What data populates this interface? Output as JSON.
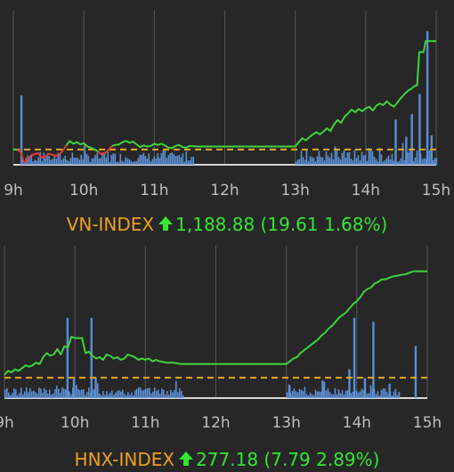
{
  "colors": {
    "background": "#272727",
    "grid": "#555555",
    "axis": "#d8d8d8",
    "up_line": "#3ed33e",
    "down_line": "#e53935",
    "reference": "#e5a823",
    "volume": "#5b8fd6",
    "index_name": "#f0a01e",
    "change_up": "#33e733"
  },
  "chart_data": [
    {
      "type": "line",
      "name": "VN-INDEX",
      "x_ticks": [
        "9h",
        "10h",
        "11h",
        "12h",
        "13h",
        "14h",
        "15h"
      ],
      "x_domain": [
        9,
        15
      ],
      "reference_value": 1169.27,
      "ylim": [
        1166.5,
        1191.5
      ],
      "index_series": [
        [
          9.0,
          1169.3
        ],
        [
          9.05,
          1169.2
        ],
        [
          9.1,
          1168.9
        ],
        [
          9.15,
          1166.9
        ],
        [
          9.2,
          1167.4
        ],
        [
          9.25,
          1168.2
        ],
        [
          9.3,
          1168.4
        ],
        [
          9.35,
          1168.6
        ],
        [
          9.4,
          1167.8
        ],
        [
          9.45,
          1167.9
        ],
        [
          9.5,
          1168.5
        ],
        [
          9.55,
          1168.3
        ],
        [
          9.6,
          1168.1
        ],
        [
          9.65,
          1168.4
        ],
        [
          9.7,
          1169.0
        ],
        [
          9.75,
          1170.0
        ],
        [
          9.8,
          1170.8
        ],
        [
          9.85,
          1170.3
        ],
        [
          9.9,
          1170.6
        ],
        [
          9.95,
          1170.2
        ],
        [
          10.0,
          1170.4
        ],
        [
          10.05,
          1169.8
        ],
        [
          10.1,
          1169.6
        ],
        [
          10.15,
          1169.3
        ],
        [
          10.2,
          1168.9
        ],
        [
          10.25,
          1168.4
        ],
        [
          10.3,
          1168.6
        ],
        [
          10.35,
          1169.2
        ],
        [
          10.4,
          1169.9
        ],
        [
          10.45,
          1170.1
        ],
        [
          10.5,
          1170.2
        ],
        [
          10.55,
          1170.6
        ],
        [
          10.6,
          1170.8
        ],
        [
          10.65,
          1170.5
        ],
        [
          10.7,
          1170.7
        ],
        [
          10.75,
          1170.2
        ],
        [
          10.8,
          1169.7
        ],
        [
          10.85,
          1170.0
        ],
        [
          10.9,
          1169.8
        ],
        [
          10.95,
          1169.9
        ],
        [
          11.0,
          1170.3
        ],
        [
          11.05,
          1170.1
        ],
        [
          11.1,
          1170.3
        ],
        [
          11.15,
          1170.0
        ],
        [
          11.2,
          1169.6
        ],
        [
          11.25,
          1169.5
        ],
        [
          11.3,
          1169.9
        ],
        [
          11.35,
          1170.1
        ],
        [
          11.4,
          1169.7
        ],
        [
          11.45,
          1169.6
        ],
        [
          11.5,
          1169.9
        ],
        [
          11.6,
          1169.8
        ],
        [
          11.75,
          1169.8
        ],
        [
          12.0,
          1169.8
        ],
        [
          12.5,
          1169.8
        ],
        [
          13.0,
          1169.8
        ],
        [
          13.05,
          1170.6
        ],
        [
          13.1,
          1171.3
        ],
        [
          13.15,
          1170.9
        ],
        [
          13.2,
          1171.5
        ],
        [
          13.25,
          1172.0
        ],
        [
          13.3,
          1172.4
        ],
        [
          13.35,
          1172.0
        ],
        [
          13.4,
          1172.5
        ],
        [
          13.45,
          1173.1
        ],
        [
          13.5,
          1172.6
        ],
        [
          13.55,
          1173.8
        ],
        [
          13.6,
          1174.6
        ],
        [
          13.65,
          1174.1
        ],
        [
          13.7,
          1175.2
        ],
        [
          13.75,
          1175.8
        ],
        [
          13.8,
          1176.5
        ],
        [
          13.85,
          1176.0
        ],
        [
          13.9,
          1176.6
        ],
        [
          13.95,
          1176.2
        ],
        [
          14.0,
          1176.7
        ],
        [
          14.05,
          1177.0
        ],
        [
          14.1,
          1176.3
        ],
        [
          14.15,
          1177.2
        ],
        [
          14.2,
          1177.6
        ],
        [
          14.25,
          1177.3
        ],
        [
          14.3,
          1178.0
        ],
        [
          14.35,
          1177.4
        ],
        [
          14.4,
          1177.0
        ],
        [
          14.45,
          1177.8
        ],
        [
          14.5,
          1178.6
        ],
        [
          14.55,
          1179.3
        ],
        [
          14.6,
          1179.9
        ],
        [
          14.65,
          1180.3
        ],
        [
          14.7,
          1180.8
        ],
        [
          14.73,
          1180.9
        ],
        [
          14.76,
          1186.9
        ],
        [
          14.82,
          1186.9
        ],
        [
          14.85,
          1188.9
        ],
        [
          15.0,
          1188.9
        ]
      ],
      "volume_spikes": [
        [
          9.1,
          52
        ],
        [
          14.41,
          34
        ],
        [
          14.56,
          21
        ],
        [
          14.64,
          38
        ],
        [
          14.75,
          53
        ],
        [
          14.86,
          100
        ],
        [
          14.92,
          22
        ]
      ],
      "volume_vmax": 100,
      "caption": {
        "name": "VN-INDEX",
        "value": "1,188.88 (19.61 1.68%)",
        "direction": "up"
      }
    },
    {
      "type": "line",
      "name": "HNX-INDEX",
      "x_ticks": [
        "9h",
        "10h",
        "11h",
        "12h",
        "13h",
        "14h",
        "15h"
      ],
      "x_domain": [
        9,
        15
      ],
      "reference_value": 269.39,
      "ylim": [
        267.9,
        277.5
      ],
      "index_series": [
        [
          9.0,
          269.6
        ],
        [
          9.05,
          269.9
        ],
        [
          9.1,
          269.8
        ],
        [
          9.15,
          270.0
        ],
        [
          9.2,
          269.9
        ],
        [
          9.25,
          270.1
        ],
        [
          9.3,
          270.3
        ],
        [
          9.35,
          270.2
        ],
        [
          9.4,
          270.3
        ],
        [
          9.45,
          270.5
        ],
        [
          9.5,
          270.4
        ],
        [
          9.55,
          270.9
        ],
        [
          9.6,
          271.2
        ],
        [
          9.65,
          271.0
        ],
        [
          9.7,
          271.1
        ],
        [
          9.75,
          271.5
        ],
        [
          9.8,
          271.1
        ],
        [
          9.85,
          271.7
        ],
        [
          9.9,
          271.6
        ],
        [
          9.95,
          272.4
        ],
        [
          10.0,
          272.3
        ],
        [
          10.1,
          272.3
        ],
        [
          10.15,
          271.2
        ],
        [
          10.2,
          271.3
        ],
        [
          10.25,
          271.0
        ],
        [
          10.3,
          270.8
        ],
        [
          10.35,
          270.9
        ],
        [
          10.4,
          270.7
        ],
        [
          10.45,
          271.1
        ],
        [
          10.5,
          271.0
        ],
        [
          10.55,
          270.8
        ],
        [
          10.6,
          270.9
        ],
        [
          10.65,
          270.7
        ],
        [
          10.7,
          270.8
        ],
        [
          10.75,
          271.1
        ],
        [
          10.8,
          271.0
        ],
        [
          10.85,
          270.9
        ],
        [
          10.9,
          270.7
        ],
        [
          10.95,
          270.8
        ],
        [
          11.0,
          270.7
        ],
        [
          11.05,
          270.8
        ],
        [
          11.1,
          270.6
        ],
        [
          11.15,
          270.7
        ],
        [
          11.2,
          270.6
        ],
        [
          11.3,
          270.5
        ],
        [
          11.4,
          270.5
        ],
        [
          11.5,
          270.4
        ],
        [
          11.6,
          270.4
        ],
        [
          12.0,
          270.4
        ],
        [
          12.5,
          270.4
        ],
        [
          13.0,
          270.4
        ],
        [
          13.05,
          270.6
        ],
        [
          13.1,
          270.8
        ],
        [
          13.15,
          270.9
        ],
        [
          13.2,
          271.2
        ],
        [
          13.25,
          271.4
        ],
        [
          13.3,
          271.6
        ],
        [
          13.35,
          271.8
        ],
        [
          13.4,
          272.0
        ],
        [
          13.45,
          272.2
        ],
        [
          13.5,
          272.5
        ],
        [
          13.55,
          272.7
        ],
        [
          13.6,
          273.0
        ],
        [
          13.65,
          273.2
        ],
        [
          13.7,
          273.5
        ],
        [
          13.75,
          273.8
        ],
        [
          13.8,
          274.0
        ],
        [
          13.85,
          274.2
        ],
        [
          13.9,
          274.5
        ],
        [
          13.95,
          274.8
        ],
        [
          14.0,
          275.0
        ],
        [
          14.05,
          275.3
        ],
        [
          14.1,
          275.7
        ],
        [
          14.15,
          275.9
        ],
        [
          14.2,
          276.0
        ],
        [
          14.25,
          276.3
        ],
        [
          14.3,
          276.4
        ],
        [
          14.35,
          276.6
        ],
        [
          14.4,
          276.6
        ],
        [
          14.45,
          276.7
        ],
        [
          14.5,
          276.8
        ],
        [
          14.6,
          276.9
        ],
        [
          14.7,
          277.0
        ],
        [
          14.8,
          277.2
        ],
        [
          15.0,
          277.2
        ]
      ],
      "volume_spikes": [
        [
          9.88,
          100
        ],
        [
          9.97,
          24
        ],
        [
          10.22,
          100
        ],
        [
          10.28,
          26
        ],
        [
          13.03,
          16
        ],
        [
          13.5,
          22
        ],
        [
          13.88,
          36
        ],
        [
          13.95,
          100
        ],
        [
          14.1,
          25
        ],
        [
          14.22,
          95
        ],
        [
          14.45,
          18
        ],
        [
          14.82,
          65
        ]
      ],
      "volume_vmax": 100,
      "caption": {
        "name": "HNX-INDEX",
        "value": "277.18 (7.79 2.89%)",
        "direction": "up"
      }
    }
  ]
}
